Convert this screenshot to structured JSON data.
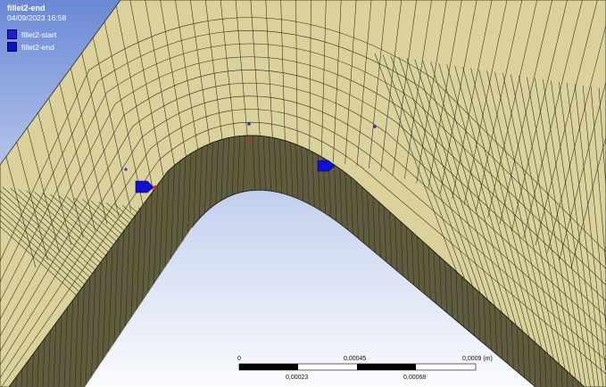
{
  "overlay": {
    "title": "fillet2-end",
    "date": "04/09/2023 16:58"
  },
  "legend": {
    "items": [
      {
        "label": "fillet2-start",
        "color": "#1f1fd6"
      },
      {
        "label": "fillet2-end",
        "color": "#0f0fc4"
      }
    ]
  },
  "scale_bar": {
    "top_labels": [
      "0",
      "0,00045",
      "0,0009 (m)"
    ],
    "bottom_labels": [
      "0,00023",
      "0,00068"
    ]
  },
  "colors": {
    "background_top": "#6f8fd9",
    "background_bottom": "#f4f6fb",
    "mesh_face": "#dbd19a",
    "mesh_side": "#605c3e",
    "mesh_lines": "#2a2a20",
    "marker": "#1010d0",
    "marker_dot": "#d02020"
  }
}
